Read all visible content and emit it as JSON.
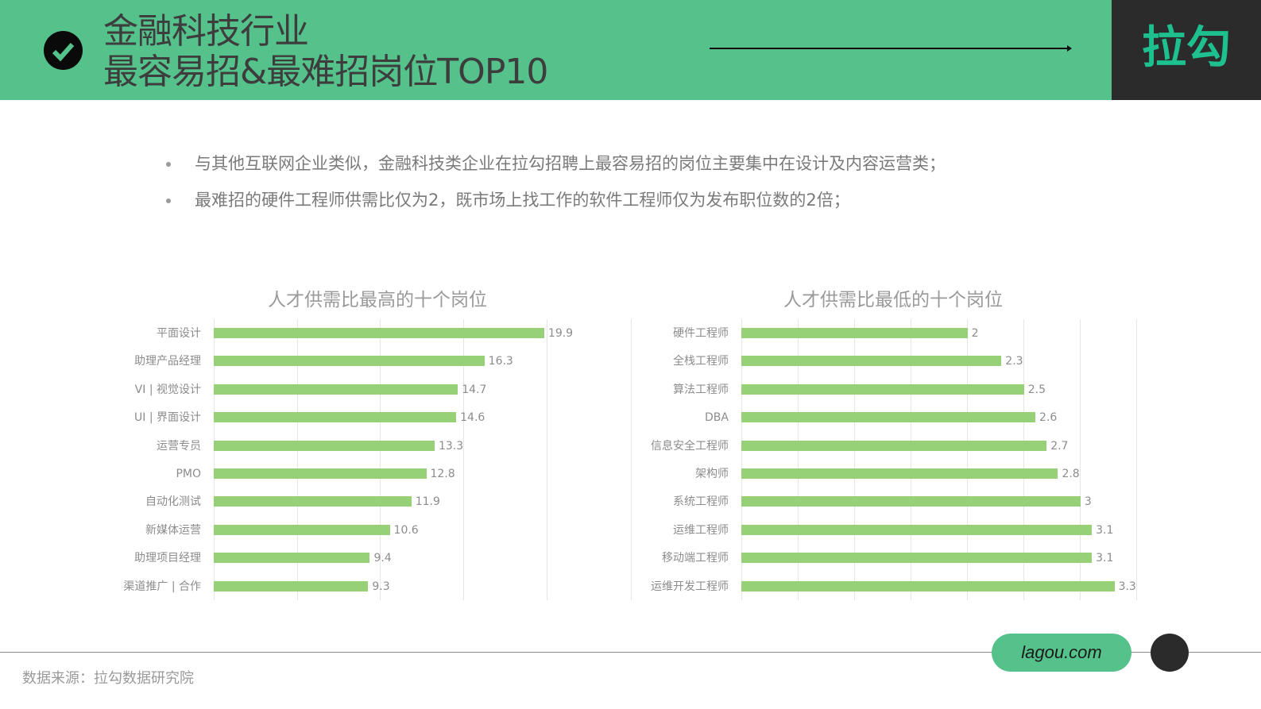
{
  "header": {
    "title_line1": "金融科技行业",
    "title_line2": "最容易招&最难招岗位TOP10",
    "logo": "拉勾",
    "icons": {
      "check": "check-circle-icon",
      "arrow": "arrow-right-icon"
    },
    "colors": {
      "band": "#55c18b",
      "logo_bg": "#2b2b2b",
      "logo_text": "#1dc08e"
    }
  },
  "bullets": [
    "与其他互联网企业类似，金融科技类企业在拉勾招聘上最容易招的岗位主要集中在设计及内容运营类；",
    "最难招的硬件工程师供需比仅为2，既市场上找工作的软件工程师仅为发布职位数的2倍；"
  ],
  "footer": {
    "source": "数据来源：拉勾数据研究院",
    "site": "lagou.com"
  },
  "chart_data": [
    {
      "type": "bar",
      "orientation": "horizontal",
      "title": "人才供需比最高的十个岗位",
      "categories": [
        "平面设计",
        "助理产品经理",
        "VI | 视觉设计",
        "UI | 界面设计",
        "运营专员",
        "PMO",
        "自动化测试",
        "新媒体运营",
        "助理项目经理",
        "渠道推广 | 合作"
      ],
      "values": [
        19.9,
        16.3,
        14.7,
        14.6,
        13.3,
        12.8,
        11.9,
        10.6,
        9.4,
        9.3
      ],
      "value_labels": [
        "19.9",
        "16.3",
        "14.7",
        "14.6",
        "13.3",
        "12.8",
        "11.9",
        "10.6",
        "9.4",
        "9.3"
      ],
      "xlabel": "",
      "ylabel": "",
      "xlim": [
        0,
        20
      ],
      "grid": true,
      "bar_color": "#96d177"
    },
    {
      "type": "bar",
      "orientation": "horizontal",
      "title": "人才供需比最低的十个岗位",
      "categories": [
        "硬件工程师",
        "全栈工程师",
        "算法工程师",
        "DBA",
        "信息安全工程师",
        "架构师",
        "系统工程师",
        "运维工程师",
        "移动端工程师",
        "运维开发工程师"
      ],
      "values": [
        2,
        2.3,
        2.5,
        2.6,
        2.7,
        2.8,
        3,
        3.1,
        3.1,
        3.3
      ],
      "value_labels": [
        "2",
        "2.3",
        "2.5",
        "2.6",
        "2.7",
        "2.8",
        "3",
        "3.1",
        "3.1",
        "3.3"
      ],
      "xlabel": "",
      "ylabel": "",
      "xlim": [
        0,
        3.5
      ],
      "grid": true,
      "bar_color": "#96d177"
    }
  ]
}
